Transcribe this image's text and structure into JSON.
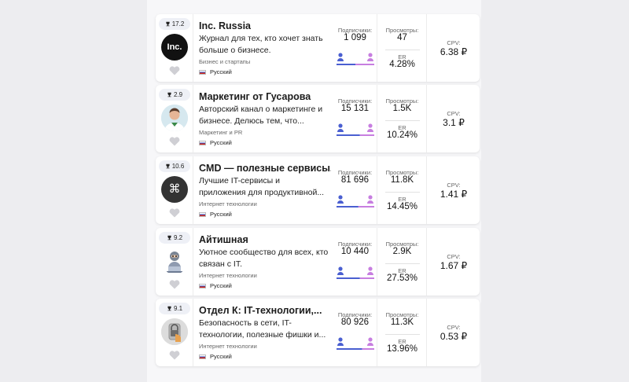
{
  "channels": [
    {
      "rank": "17.2",
      "title": "Inc. Russia",
      "description": "Журнал для тех, кто хочет знать больше о бизнесе.",
      "category": "Бизнес и стартапы",
      "language": "Русский",
      "subscribers_label": "Подписчики:",
      "subscribers": "1 099",
      "views_label": "Просмотры:",
      "views": "47",
      "er_label": "ER",
      "er": "4.28%",
      "cpv_label": "CPV:",
      "cpv": "6.38 ₽",
      "avatar_icon": "inc-logo-icon",
      "avatar_text": "Inc.",
      "male_share": 0.5
    },
    {
      "rank": "2.9",
      "title": "Маркетинг от Гусарова",
      "description": "Авторский канал о маркетинге и бизнесе. Делюсь тем, что...",
      "category": "Маркетинг и PR",
      "language": "Русский",
      "subscribers_label": "Подписчики:",
      "subscribers": "15 131",
      "views_label": "Просмотры:",
      "views": "1.5K",
      "er_label": "ER",
      "er": "10.24%",
      "cpv_label": "CPV:",
      "cpv": "3.1 ₽",
      "avatar_icon": "person-photo-icon",
      "avatar_text": "",
      "male_share": 0.62
    },
    {
      "rank": "10.6",
      "title": "CMD — полезные сервисы...",
      "description": "Лучшие IT-сервисы и приложения для продуктивной...",
      "category": "Интернет технологии",
      "language": "Русский",
      "subscribers_label": "Подписчики:",
      "subscribers": "81 696",
      "views_label": "Просмотры:",
      "views": "11.8K",
      "er_label": "ER",
      "er": "14.45%",
      "cpv_label": "CPV:",
      "cpv": "1.41 ₽",
      "avatar_icon": "command-key-icon",
      "avatar_text": "⌘",
      "male_share": 0.58
    },
    {
      "rank": "9.2",
      "title": "Айтишная",
      "description": "Уютное сообщество для всех, кто связан с IT.",
      "category": "Интернет технологии",
      "language": "Русский",
      "subscribers_label": "Подписчики:",
      "subscribers": "10 440",
      "views_label": "Просмотры:",
      "views": "2.9K",
      "er_label": "ER",
      "er": "27.53%",
      "cpv_label": "CPV:",
      "cpv": "1.67 ₽",
      "avatar_icon": "coder-character-icon",
      "avatar_text": "",
      "male_share": 0.62
    },
    {
      "rank": "9.1",
      "title": "Отдел К: IT-технологии,...",
      "description": "Безопасность в сети, IT-технологии, полезные фишки и...",
      "category": "Интернет технологии",
      "language": "Русский",
      "subscribers_label": "Подписчики:",
      "subscribers": "80 926",
      "views_label": "Просмотры:",
      "views": "11.3K",
      "er_label": "ER",
      "er": "13.96%",
      "cpv_label": "CPV:",
      "cpv": "0.53 ₽",
      "avatar_icon": "padlock-icon",
      "avatar_text": "",
      "male_share": 0.68
    }
  ],
  "colors": {
    "male": "#4a5fd1",
    "female": "#c77ee0",
    "heart": "#cfcfd4",
    "trophy": "#222222"
  }
}
